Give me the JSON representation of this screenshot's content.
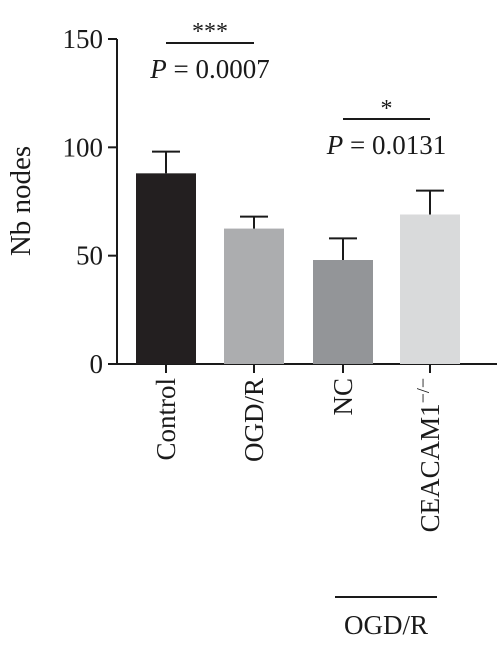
{
  "chart_data": {
    "type": "bar",
    "ylabel": "Nb nodes",
    "xlabel": "",
    "ylim": [
      0,
      150
    ],
    "yticks": [
      0,
      50,
      100,
      150
    ],
    "ytick_labels": [
      "0",
      "50",
      "100",
      "150"
    ],
    "categories": [
      "Control",
      "OGD/R",
      "NC",
      "CEACAM1"
    ],
    "category_superscripts": [
      "",
      "",
      "",
      "−/−"
    ],
    "values": [
      88,
      62.5,
      48,
      69
    ],
    "errors": [
      10,
      5.5,
      10,
      11
    ],
    "colors": [
      "#231f20",
      "#acadaf",
      "#939598",
      "#d9dadb"
    ],
    "group_label": "OGD/R",
    "significance": [
      {
        "stars": "***",
        "p_label": "P",
        "p_value": " = 0.0007"
      },
      {
        "stars": "*",
        "p_label": "P",
        "p_value": " = 0.0131"
      }
    ]
  }
}
